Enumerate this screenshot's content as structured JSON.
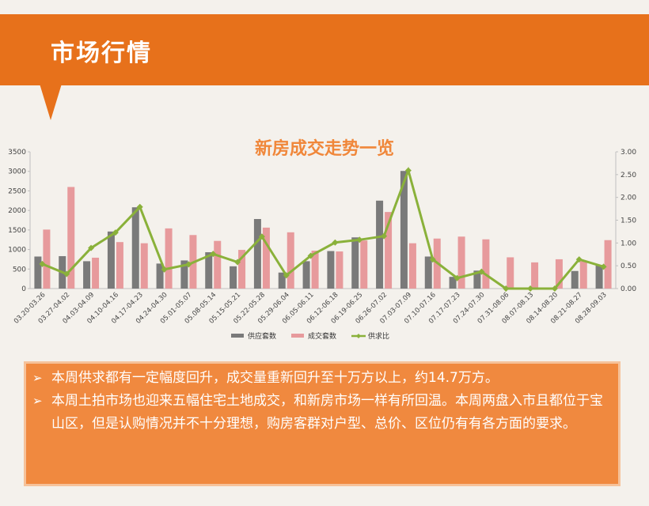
{
  "header": {
    "title": "市场行情"
  },
  "chart_data": {
    "type": "bar",
    "title": "新房成交走势一览",
    "categories": [
      "03.20-03.26",
      "03.27-04.02",
      "04.03-04.09",
      "04.10-04.16",
      "04.17-04.23",
      "04.24-04.30",
      "05.01-05.07",
      "05.08-05.14",
      "05.15-05.21",
      "05.22-05.28",
      "05.29-06.04",
      "06.05-06.11",
      "06.12-06.18",
      "06.19-06.25",
      "06.26-07.02",
      "07.03-07.09",
      "07.10-07.16",
      "07.17-07.23",
      "07.24-07.30",
      "07.31-08.06",
      "08.07-08.13",
      "08.14-08.20",
      "08.21-08.27",
      "08.28-09.03"
    ],
    "series": [
      {
        "name": "供应套数",
        "kind": "bar",
        "axis": "left",
        "color": "#7a7a7a",
        "values": [
          820,
          830,
          700,
          1460,
          2080,
          640,
          720,
          930,
          570,
          1780,
          410,
          700,
          960,
          1310,
          2250,
          3010,
          820,
          300,
          460,
          0,
          0,
          0,
          450,
          600
        ]
      },
      {
        "name": "成交套数",
        "kind": "bar",
        "axis": "left",
        "color": "#e79a9c",
        "values": [
          1510,
          2600,
          790,
          1190,
          1160,
          1540,
          1370,
          1220,
          990,
          1560,
          1440,
          970,
          950,
          1230,
          1960,
          1160,
          1280,
          1330,
          1260,
          800,
          670,
          750,
          700,
          1240
        ]
      },
      {
        "name": "供求比",
        "kind": "line",
        "axis": "right",
        "color": "#8ab13a",
        "values": [
          0.54,
          0.32,
          0.89,
          1.23,
          1.79,
          0.42,
          0.53,
          0.76,
          0.58,
          1.14,
          0.29,
          0.72,
          1.01,
          1.07,
          1.15,
          2.59,
          0.64,
          0.23,
          0.37,
          0.0,
          0.0,
          0.0,
          0.64,
          0.48
        ]
      }
    ],
    "ylim": [
      0,
      3500
    ],
    "yticks": [
      "0",
      "500",
      "1000",
      "1500",
      "2000",
      "2500",
      "3000",
      "3500"
    ],
    "y2lim": [
      0,
      3
    ],
    "y2ticks": [
      "0.00",
      "0.50",
      "1.00",
      "1.50",
      "2.00",
      "2.50",
      "3.00"
    ],
    "legend_position": "bottom",
    "grid": false
  },
  "summary": {
    "bullet_mark": "➢",
    "points": [
      "本周供求都有一定幅度回升，成交量重新回升至十万方以上，约14.7万方。",
      "本周土拍市场也迎来五幅住宅土地成交，和新房市场一样有所回温。本周两盘入市且都位于宝山区，但是认购情况并不十分理想，购房客群对户型、总价、区位仍有有各方面的要求。"
    ]
  }
}
